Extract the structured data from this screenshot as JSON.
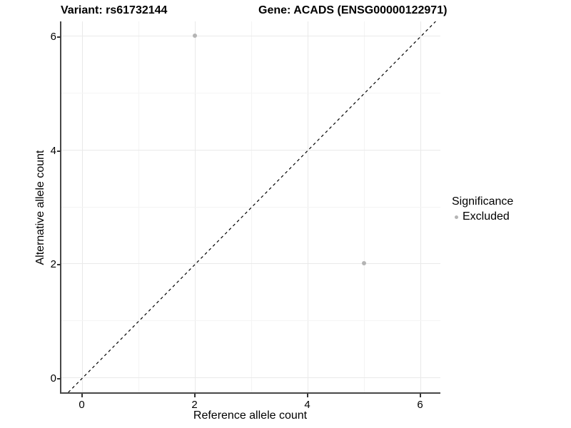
{
  "chart_data": {
    "type": "scatter",
    "title_left": "Variant: rs61732144",
    "title_right": "Gene: ACADS (ENSG00000122971)",
    "xlabel": "Reference allele count",
    "ylabel": "Alternative allele count",
    "x_ticks": [
      "0",
      "2",
      "4",
      "6"
    ],
    "y_ticks": [
      "0",
      "2",
      "4",
      "6"
    ],
    "xlim": [
      -0.35,
      6.35
    ],
    "ylim": [
      -0.26,
      6.28
    ],
    "grid": "major and minor gridlines at integer values",
    "series": [
      {
        "name": "Excluded",
        "color": "#b4b4b4",
        "points": [
          {
            "x": 2,
            "y": 6
          },
          {
            "x": 5,
            "y": 2
          }
        ]
      }
    ],
    "reference_line": {
      "type": "identity y=x",
      "style": "dashed",
      "color": "#000000"
    },
    "legend": {
      "title": "Significance",
      "position": "right",
      "items": [
        {
          "label": "Excluded",
          "color": "#b4b4b4",
          "marker": "circle"
        }
      ]
    }
  },
  "colors": {
    "background": "#ffffff",
    "axis_line": "#474747",
    "grid_major": "#e9e9e9",
    "grid_minor": "#f4f4f4",
    "point": "#b4b4b4",
    "text": "#000000"
  }
}
